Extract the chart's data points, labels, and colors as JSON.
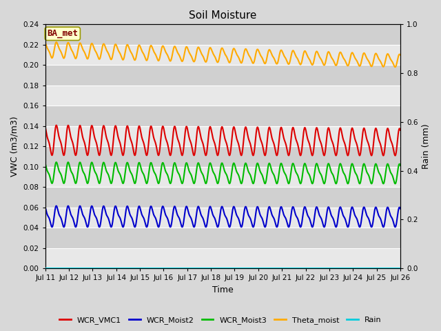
{
  "title": "Soil Moisture",
  "xlabel": "Time",
  "ylabel_left": "VWC (m3/m3)",
  "ylabel_right": "Rain (mm)",
  "ylim_left": [
    0.0,
    0.24
  ],
  "ylim_right": [
    0.0,
    1.0
  ],
  "xlim": [
    0,
    360
  ],
  "background_color": "#d8d8d8",
  "plot_bg_color": "#d8d8d8",
  "annotation_text": "BA_met",
  "annotation_bg": "#ffffcc",
  "annotation_border": "#999900",
  "annotation_text_color": "#800000",
  "series_names": [
    "WCR_VMC1",
    "WCR_Moist2",
    "WCR_Moist3",
    "Theta_moist",
    "Rain"
  ],
  "series_colors": [
    "#dd0000",
    "#0000cc",
    "#00bb00",
    "#ffaa00",
    "#00ccdd"
  ],
  "series_base": [
    0.126,
    0.051,
    0.094,
    0.215,
    0.0
  ],
  "series_amp1": [
    0.013,
    0.009,
    0.009,
    0.007,
    0.0
  ],
  "series_amp2": [
    0.004,
    0.003,
    0.003,
    0.002,
    0.0
  ],
  "series_period": [
    12.0,
    12.0,
    12.0,
    12.0,
    12.0
  ],
  "series_decay": [
    0.0003,
    0.0002,
    0.0002,
    0.0006,
    0.0
  ],
  "series_trend": [
    -5e-06,
    -2e-06,
    -3e-06,
    -3e-05,
    0.0
  ],
  "xtick_positions": [
    0,
    24,
    48,
    72,
    96,
    120,
    144,
    168,
    192,
    216,
    240,
    264,
    288,
    312,
    336,
    360
  ],
  "xtick_labels": [
    "Jul 11",
    "Jul 12",
    "Jul 13",
    "Jul 14",
    "Jul 15",
    "Jul 16",
    "Jul 17",
    "Jul 18",
    "Jul 19",
    "Jul 20",
    "Jul 21",
    "Jul 22",
    "Jul 23",
    "Jul 24",
    "Jul 25",
    "Jul 26"
  ],
  "ytick_left": [
    0.0,
    0.02,
    0.04,
    0.06,
    0.08,
    0.1,
    0.12,
    0.14,
    0.16,
    0.18,
    0.2,
    0.22,
    0.24
  ],
  "ytick_right": [
    0.0,
    0.2,
    0.4,
    0.6,
    0.8,
    1.0
  ],
  "grid_color": "#ffffff",
  "band_color_light": "#e8e8e8",
  "band_color_dark": "#d0d0d0",
  "line_width": 1.5,
  "figsize": [
    6.4,
    4.8
  ],
  "dpi": 100
}
